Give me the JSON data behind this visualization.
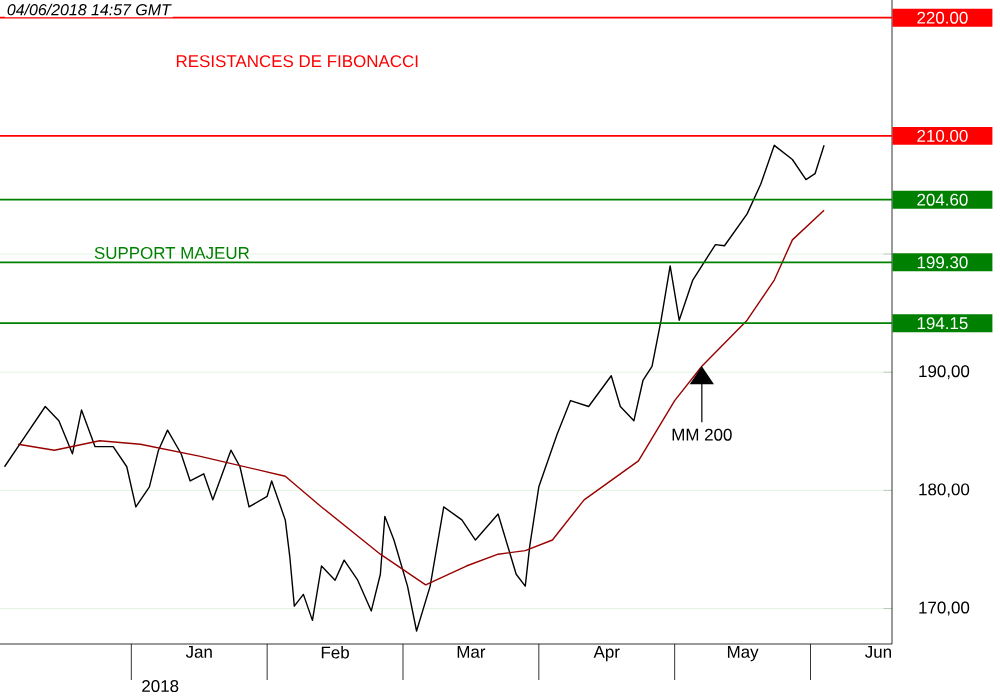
{
  "chart_data": {
    "type": "line",
    "x": [
      "2017-12-04",
      "2017-12-07",
      "2017-12-10",
      "2017-12-13",
      "2017-12-16",
      "2017-12-19",
      "2017-12-21",
      "2017-12-24",
      "2017-12-28",
      "2017-12-31",
      "2018-01-02",
      "2018-01-05",
      "2018-01-07",
      "2018-01-09",
      "2018-01-12",
      "2018-01-14",
      "2018-01-17",
      "2018-01-19",
      "2018-01-23",
      "2018-01-25",
      "2018-01-27",
      "2018-01-31",
      "2018-02-01",
      "2018-02-04",
      "2018-02-05",
      "2018-02-06",
      "2018-02-08",
      "2018-02-10",
      "2018-02-12",
      "2018-02-15",
      "2018-02-17",
      "2018-02-20",
      "2018-02-23",
      "2018-02-25",
      "2018-02-26",
      "2018-02-28",
      "2018-03-03",
      "2018-03-05",
      "2018-03-08",
      "2018-03-11",
      "2018-03-15",
      "2018-03-18",
      "2018-03-23",
      "2018-03-27",
      "2018-03-29",
      "2018-03-30",
      "2018-04-01",
      "2018-04-05",
      "2018-04-08",
      "2018-04-12",
      "2018-04-17",
      "2018-04-19",
      "2018-04-22",
      "2018-04-24",
      "2018-04-26",
      "2018-04-28",
      "2018-04-30",
      "2018-05-02",
      "2018-05-05",
      "2018-05-10",
      "2018-05-12",
      "2018-05-17",
      "2018-05-20",
      "2018-05-23",
      "2018-05-27",
      "2018-05-30",
      "2018-06-01",
      "2018-06-03"
    ],
    "series": [
      {
        "color": "#000000",
        "values": [
          182.0,
          183.7,
          185.4,
          187.1,
          185.9,
          183.1,
          186.8,
          183.7,
          183.7,
          182.0,
          178.6,
          180.3,
          183.4,
          185.1,
          183.1,
          180.8,
          181.4,
          179.2,
          183.4,
          182.0,
          178.6,
          179.5,
          180.8,
          177.5,
          174.4,
          170.2,
          171.2,
          169.0,
          173.6,
          172.4,
          174.1,
          172.4,
          169.8,
          172.9,
          177.8,
          175.8,
          171.9,
          168.1,
          171.9,
          178.6,
          177.5,
          175.8,
          178.0,
          172.9,
          171.9,
          175.3,
          180.3,
          184.7,
          187.6,
          187.1,
          189.7,
          187.1,
          185.9,
          189.3,
          190.5,
          194.4,
          199.0,
          194.4,
          197.8,
          200.8,
          200.7,
          203.4,
          205.9,
          209.2,
          208.0,
          206.3,
          206.8,
          209.2
        ]
      },
      {
        "color": "#990000",
        "x": [
          "2017-12-07",
          "2017-12-15",
          "2017-12-25",
          "2018-01-03",
          "2018-01-16",
          "2018-02-04",
          "2018-02-12",
          "2018-02-25",
          "2018-03-07",
          "2018-03-16",
          "2018-03-23",
          "2018-03-29",
          "2018-04-04",
          "2018-04-11",
          "2018-04-23",
          "2018-05-01",
          "2018-05-07",
          "2018-05-17",
          "2018-05-23",
          "2018-05-27",
          "2018-06-03"
        ],
        "values": [
          183.9,
          183.4,
          184.2,
          183.9,
          182.9,
          181.2,
          178.6,
          174.6,
          172.0,
          173.6,
          174.6,
          174.9,
          175.8,
          179.2,
          182.5,
          187.6,
          190.5,
          194.4,
          197.8,
          201.2,
          203.7
        ]
      }
    ],
    "xlim": [
      "2017-12-03",
      "2018-06-18"
    ],
    "xticks": [
      {
        "value": "2018-01-16",
        "label": "Jan"
      },
      {
        "value": "2018-02-15",
        "label": "Feb"
      },
      {
        "value": "2018-03-17",
        "label": "Mar"
      },
      {
        "value": "2018-04-16",
        "label": "Apr"
      },
      {
        "value": "2018-05-16",
        "label": "May"
      },
      {
        "value": "2018-06-15",
        "label": "Jun"
      }
    ],
    "xlabel": "2018",
    "ylim": [
      167,
      221.5
    ],
    "yticks": [
      {
        "value": 170,
        "label": "170,00"
      },
      {
        "value": 180,
        "label": "180,00"
      },
      {
        "value": 190,
        "label": "190,00"
      },
      {
        "value": 200,
        "label": null
      }
    ],
    "grid": "y",
    "ref_lines": [
      {
        "axis": "y",
        "value": 220,
        "label": "220.00",
        "color": "#ff0000"
      },
      {
        "axis": "y",
        "value": 210,
        "label": "210.00",
        "color": "#ff0000"
      },
      {
        "axis": "y",
        "value": 204.6,
        "label": "204.60",
        "color": "#008000"
      },
      {
        "axis": "y",
        "value": 199.3,
        "label": "199.30",
        "color": "#008000"
      },
      {
        "axis": "y",
        "value": 194.15,
        "label": "194.15",
        "color": "#008000"
      }
    ],
    "annotations": [
      "04/06/2018  14:57 GMT",
      "RESISTANCES DE FIBONACCI",
      {
        "text": "SUPPORT MAJEUR",
        "x": "2017-12-23",
        "y": 199.3
      },
      {
        "text": "MM 200",
        "x": "2018-05-07",
        "y": 190.5
      }
    ]
  }
}
